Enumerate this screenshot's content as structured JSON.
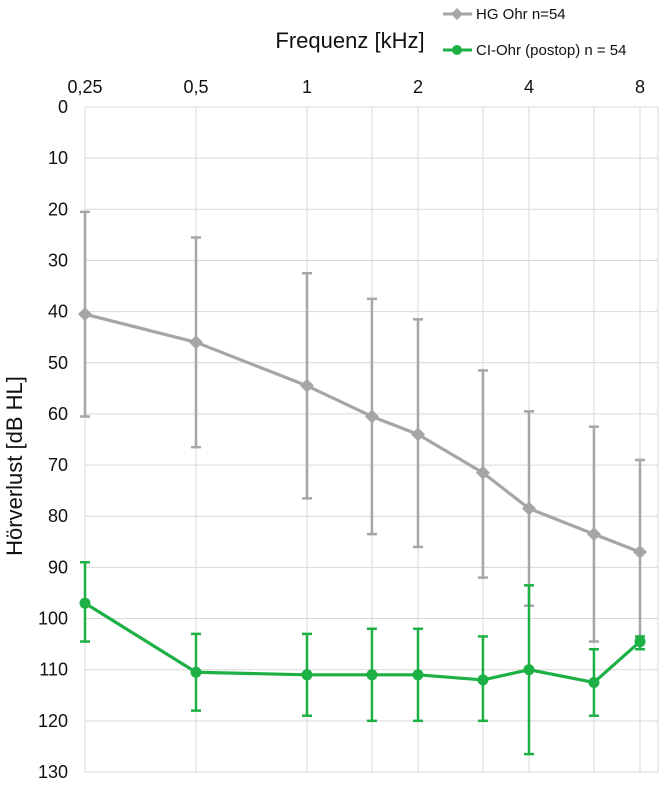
{
  "chart_data": {
    "type": "line",
    "title": "",
    "xlabel": "Frequenz [kHz]",
    "ylabel": "Hörverlust [dB HL]",
    "x_axis_position": "top",
    "y_axis_inverted": true,
    "ylim": [
      0,
      130
    ],
    "grid": true,
    "xticks": [
      "0,25",
      "0,5",
      "1",
      "2",
      "4",
      "8"
    ],
    "yticks": [
      "0",
      "10",
      "20",
      "30",
      "40",
      "50",
      "60",
      "70",
      "80",
      "90",
      "100",
      "110",
      "120",
      "130"
    ],
    "x_positions": [
      "0,25",
      "0,5",
      "1",
      "1,5",
      "2",
      "3",
      "4",
      "6",
      "8"
    ],
    "legend_position": "top-right",
    "series": [
      {
        "name": "HG Ohr n=54",
        "color": "#a6a6a6",
        "marker": "diamond",
        "values": [
          40.5,
          46,
          54.5,
          60.5,
          64,
          71.5,
          78.5,
          83.5,
          87
        ],
        "error_low": [
          20.5,
          25.5,
          32.5,
          37.5,
          41.5,
          51.5,
          59.5,
          62.5,
          69
        ],
        "error_high": [
          60.5,
          66.5,
          76.5,
          83.5,
          86,
          92,
          97.5,
          104.5,
          105
        ]
      },
      {
        "name": "CI-Ohr (postop) n = 54",
        "color": "#1db045",
        "marker": "circle",
        "values": [
          97,
          110.5,
          111,
          111,
          111,
          112,
          110,
          112.5,
          104.5
        ],
        "error_low": [
          89,
          103,
          103,
          102,
          102,
          103.5,
          93.5,
          106,
          103.5
        ],
        "error_high": [
          104.5,
          118,
          119,
          120,
          120,
          120,
          126.5,
          119,
          106
        ]
      }
    ]
  }
}
